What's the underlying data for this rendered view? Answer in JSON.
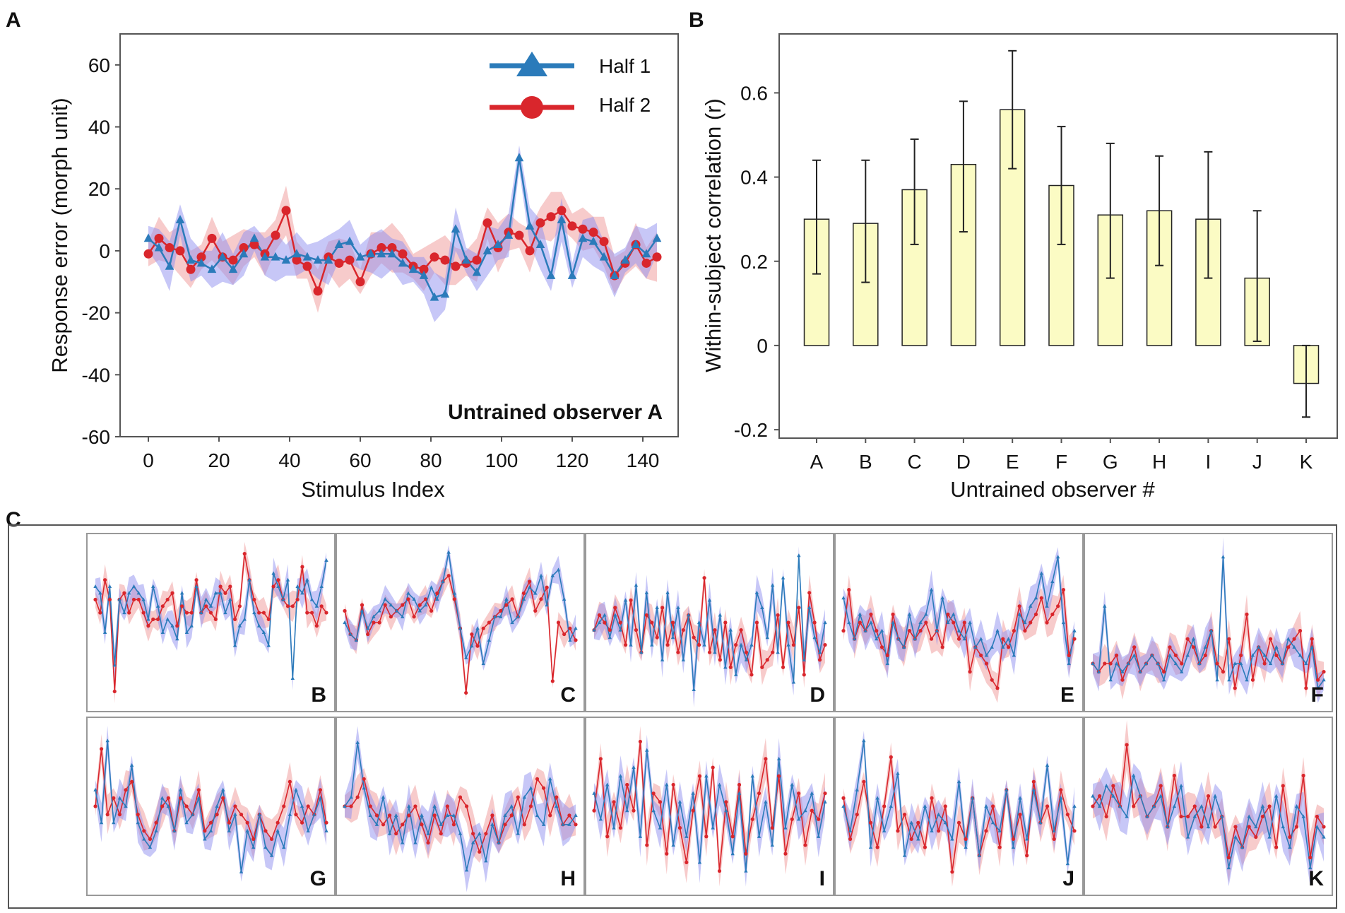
{
  "colors": {
    "half1": "#2b7bba",
    "half2": "#d9262c",
    "band1": "#8f8ff0",
    "band2": "#f0a0a0",
    "bar_fill": "#fbfbc4",
    "frame": "#555555"
  },
  "chart_data": [
    {
      "id": "A",
      "type": "line",
      "panel_letter": "A",
      "title": "",
      "annotation": "Untrained observer A",
      "xlabel": "Stimulus Index",
      "ylabel": "Response error (morph unit)",
      "xlim": [
        -8,
        150
      ],
      "ylim": [
        -60,
        70
      ],
      "xticks": [
        "0",
        "20",
        "40",
        "60",
        "80",
        "100",
        "120",
        "140"
      ],
      "yticks": [
        "60",
        "40",
        "20",
        "0",
        "-20",
        "-40",
        "-60"
      ],
      "legend": {
        "position": "top-right",
        "entries": [
          "Half 1",
          "Half 2"
        ]
      },
      "x": [
        0,
        3,
        6,
        9,
        12,
        15,
        18,
        21,
        24,
        27,
        30,
        33,
        36,
        39,
        42,
        45,
        48,
        51,
        54,
        57,
        60,
        63,
        66,
        69,
        72,
        75,
        78,
        81,
        84,
        87,
        90,
        93,
        96,
        99,
        102,
        105,
        108,
        111,
        114,
        117,
        120,
        123,
        126,
        129,
        132,
        135,
        138,
        141,
        144
      ],
      "series": [
        {
          "name": "Half 1",
          "marker": "triangle",
          "values": [
            4,
            1,
            -5,
            10,
            -3,
            -4,
            -6,
            -2,
            -6,
            -1,
            4,
            -2,
            -2,
            -3,
            -1,
            -2,
            -3,
            -3,
            2,
            3,
            -2,
            -1,
            -1,
            -1,
            -4,
            -6,
            -8,
            -15,
            -14,
            7,
            -3,
            -7,
            0,
            2,
            5,
            30,
            8,
            2,
            -8,
            10,
            -8,
            4,
            3,
            -2,
            -8,
            -3,
            2,
            -1,
            4
          ]
        },
        {
          "name": "Half 2",
          "marker": "circle",
          "values": [
            -1,
            4,
            1,
            0,
            -6,
            -2,
            4,
            -2,
            -3,
            1,
            2,
            -1,
            5,
            13,
            -3,
            -5,
            -13,
            -2,
            -4,
            -3,
            -10,
            -1,
            1,
            1,
            -1,
            -5,
            -6,
            -2,
            -3,
            -5,
            -4,
            -3,
            9,
            1,
            6,
            5,
            0,
            9,
            11,
            13,
            8,
            7,
            6,
            3,
            -8,
            -4,
            2,
            -4,
            -2
          ]
        }
      ]
    },
    {
      "id": "B",
      "type": "bar",
      "panel_letter": "B",
      "xlabel": "Untrained observer #",
      "ylabel": "Within-subject correlation (r)",
      "ylim": [
        -0.22,
        0.74
      ],
      "yticks": [
        "0.6",
        "0.4",
        "0.2",
        "0",
        "-0.2"
      ],
      "categories": [
        "A",
        "B",
        "C",
        "D",
        "E",
        "F",
        "G",
        "H",
        "I",
        "J",
        "K"
      ],
      "values": [
        0.3,
        0.29,
        0.37,
        0.43,
        0.56,
        0.38,
        0.31,
        0.32,
        0.3,
        0.16,
        -0.09
      ],
      "error_low": [
        0.17,
        0.15,
        0.24,
        0.27,
        0.42,
        0.24,
        0.16,
        0.19,
        0.16,
        0.01,
        -0.17
      ],
      "error_high": [
        0.44,
        0.44,
        0.49,
        0.58,
        0.7,
        0.52,
        0.48,
        0.45,
        0.46,
        0.32,
        0.0
      ]
    },
    {
      "id": "C",
      "type": "line",
      "panel_letter": "C",
      "subplots": [
        {
          "label": "B",
          "half1": [
            2,
            1,
            -5,
            2,
            -10,
            0,
            -2,
            1,
            2,
            1,
            0,
            -3,
            2,
            -1,
            -5,
            -3,
            -4,
            -6,
            1,
            -5,
            -4,
            2,
            -2,
            0,
            -1,
            1,
            1,
            -2,
            0,
            -7,
            -4,
            -3,
            3,
            -2,
            -4,
            -5,
            -7,
            4,
            2,
            0,
            3,
            -12,
            2,
            1,
            3,
            0,
            -1,
            2,
            6
          ],
          "half2": [
            0,
            -2,
            3,
            0,
            -14,
            0,
            1,
            -2,
            0,
            0,
            -2,
            -4,
            -3,
            -3,
            -1,
            0,
            1,
            -4,
            -1,
            -2,
            -2,
            3,
            -2,
            -1,
            -2,
            -3,
            2,
            1,
            2,
            -3,
            -1,
            7,
            3,
            0,
            -2,
            -2,
            -3,
            2,
            3,
            0,
            -1,
            -1,
            0,
            5,
            -2,
            -2,
            -4,
            -1,
            -2
          ]
        },
        {
          "label": "C",
          "half1": [
            -2,
            -4,
            -5,
            0,
            -3,
            -1,
            0,
            2,
            1,
            0,
            -1,
            3,
            2,
            0,
            1,
            4,
            2,
            5,
            10,
            3,
            -3,
            -8,
            -6,
            -3,
            -9,
            -5,
            -1,
            -1,
            2,
            -2,
            -1,
            2,
            4,
            3,
            6,
            1,
            6,
            7,
            2,
            -5,
            -3
          ],
          "half2": [
            0,
            -4,
            -5,
            1,
            -4,
            -2,
            -2,
            1,
            -1,
            0,
            1,
            2,
            -1,
            1,
            2,
            0,
            3,
            5,
            6,
            2,
            -3,
            -14,
            -4,
            -6,
            -3,
            -2,
            -1,
            0,
            1,
            2,
            -1,
            3,
            5,
            0,
            2,
            4,
            -12,
            -2,
            -4,
            -3,
            -5
          ]
        },
        {
          "label": "D",
          "half1": [
            0,
            1,
            2,
            -1,
            2,
            0,
            4,
            -2,
            6,
            -3,
            5,
            -2,
            3,
            -4,
            5,
            -1,
            3,
            -4,
            2,
            -8,
            1,
            -2,
            4,
            -3,
            2,
            -5,
            0,
            -6,
            -2,
            -4,
            -2,
            5,
            3,
            -1,
            6,
            -3,
            7,
            -2,
            -7,
            10,
            -4,
            3,
            -1,
            -3,
            1
          ],
          "half2": [
            0,
            2,
            1,
            0,
            3,
            1,
            -2,
            4,
            0,
            -3,
            2,
            1,
            -1,
            3,
            -2,
            1,
            -3,
            0,
            2,
            -1,
            -2,
            7,
            -3,
            0,
            -4,
            1,
            -5,
            -2,
            0,
            -3,
            -6,
            1,
            -5,
            -4,
            -3,
            2,
            -5,
            1,
            -2,
            3,
            -6,
            5,
            1,
            -4,
            -2
          ]
        },
        {
          "label": "E",
          "half1": [
            3,
            0,
            -2,
            1,
            -1,
            0,
            -2,
            -1,
            -5,
            0,
            -2,
            -3,
            1,
            -2,
            0,
            1,
            4,
            -1,
            3,
            0,
            1,
            -1,
            -2,
            0,
            -3,
            -2,
            -4,
            -3,
            -1,
            -3,
            -2,
            -4,
            1,
            0,
            2,
            3,
            6,
            2,
            5,
            8,
            0,
            -5,
            -1
          ],
          "half2": [
            -1,
            4,
            -2,
            0,
            -1,
            1,
            -1,
            -3,
            -4,
            1,
            -2,
            -3,
            -1,
            -2,
            -1,
            0,
            -2,
            -1,
            -3,
            1,
            0,
            -2,
            0,
            -6,
            -3,
            -4,
            -5,
            -7,
            -8,
            -2,
            -3,
            -1,
            2,
            -1,
            0,
            1,
            3,
            0,
            1,
            2,
            4,
            -4,
            -2
          ]
        },
        {
          "label": "F",
          "half1": [
            -1,
            -2,
            6,
            -3,
            -1,
            -2,
            -1,
            0,
            -2,
            -1,
            0,
            -1,
            -3,
            0,
            -1,
            -2,
            0,
            2,
            -1,
            1,
            3,
            -3,
            12,
            -3,
            -1,
            -1,
            -3,
            0,
            1,
            0,
            -1,
            1,
            -1,
            2,
            1,
            0,
            -1,
            1,
            -4,
            -3
          ],
          "half2": [
            -1,
            -2,
            -1,
            -1,
            0,
            -3,
            -1,
            1,
            -2,
            -1,
            0,
            -1,
            -2,
            1,
            0,
            -1,
            2,
            1,
            -1,
            0,
            3,
            -1,
            -2,
            2,
            -4,
            0,
            5,
            -3,
            1,
            -1,
            2,
            0,
            -1,
            1,
            2,
            3,
            -4,
            2,
            -3,
            -2
          ]
        },
        {
          "label": "G",
          "half1": [
            2,
            -2,
            8,
            -2,
            1,
            0,
            5,
            -2,
            -4,
            -5,
            -3,
            1,
            0,
            -3,
            2,
            -2,
            -1,
            1,
            -4,
            -3,
            0,
            2,
            -3,
            -1,
            -8,
            -3,
            -5,
            -1,
            -5,
            -6,
            -3,
            -5,
            -1,
            2,
            0,
            -3,
            -1,
            1,
            -3
          ],
          "half2": [
            0,
            7,
            -1,
            1,
            -1,
            2,
            3,
            -1,
            -3,
            -4,
            -2,
            0,
            1,
            -3,
            1,
            0,
            -1,
            2,
            -3,
            -2,
            -1,
            1,
            -2,
            0,
            -1,
            -2,
            -4,
            -1,
            -3,
            -4,
            -2,
            0,
            3,
            -1,
            -2,
            0,
            -1,
            2,
            -2
          ]
        },
        {
          "label": "H",
          "half1": [
            0,
            1,
            7,
            2,
            -1,
            -2,
            1,
            -3,
            -1,
            -4,
            0,
            -4,
            -1,
            -3,
            0,
            -2,
            -1,
            -1,
            -3,
            -7,
            -4,
            -3,
            -6,
            -2,
            -4,
            -1,
            0,
            -3,
            1,
            2,
            -1,
            -2,
            3,
            0,
            -2,
            -2,
            -1
          ],
          "half2": [
            0,
            0,
            1,
            3,
            0,
            -1,
            -2,
            -1,
            -3,
            -2,
            -1,
            0,
            -2,
            -4,
            -1,
            -3,
            0,
            -2,
            1,
            0,
            -3,
            -5,
            -3,
            -1,
            -4,
            -2,
            -1,
            1,
            -2,
            0,
            3,
            2,
            -1,
            1,
            -2,
            -1,
            -2
          ]
        },
        {
          "label": "I",
          "half1": [
            2,
            -1,
            3,
            -2,
            4,
            0,
            5,
            -3,
            7,
            0,
            -2,
            3,
            -4,
            1,
            -3,
            2,
            -6,
            4,
            -2,
            3,
            0,
            -5,
            2,
            -7,
            4,
            -3,
            1,
            -4,
            6,
            -2,
            3,
            -1,
            0,
            2,
            -3,
            1
          ],
          "half2": [
            0,
            6,
            -3,
            1,
            -2,
            3,
            0,
            8,
            -4,
            2,
            1,
            -5,
            3,
            -2,
            -6,
            0,
            4,
            -3,
            5,
            -7,
            1,
            -3,
            3,
            -5,
            -1,
            2,
            6,
            -2,
            4,
            -5,
            -1,
            2,
            -4,
            0,
            -1,
            2
          ]
        },
        {
          "label": "J",
          "half1": [
            0,
            -3,
            2,
            8,
            -5,
            1,
            -3,
            0,
            4,
            -6,
            -2,
            -4,
            0,
            -3,
            -1,
            -2,
            -4,
            3,
            -5,
            1,
            -6,
            0,
            -2,
            -3,
            2,
            -5,
            1,
            -4,
            2,
            -2,
            5,
            -3,
            1,
            -7,
            0
          ],
          "half2": [
            1,
            -4,
            -1,
            3,
            -2,
            -5,
            0,
            6,
            -3,
            -1,
            -4,
            -2,
            -5,
            1,
            -3,
            0,
            -8,
            -2,
            -4,
            1,
            -6,
            -3,
            0,
            -5,
            2,
            -4,
            -1,
            -6,
            3,
            -2,
            0,
            -4,
            2,
            -1,
            -3
          ]
        },
        {
          "label": "K",
          "half1": [
            1,
            0,
            2,
            1,
            0,
            -1,
            3,
            1,
            -1,
            0,
            1,
            -2,
            0,
            2,
            -3,
            -1,
            0,
            -2,
            1,
            -1,
            -6,
            -3,
            -4,
            -1,
            -2,
            0,
            -3,
            1,
            -2,
            -4,
            0,
            -1,
            -6,
            -2,
            -3
          ],
          "half2": [
            0,
            1,
            -1,
            2,
            0,
            6,
            0,
            1,
            -1,
            0,
            2,
            -2,
            3,
            -1,
            -1,
            0,
            -2,
            1,
            -2,
            -1,
            -5,
            -2,
            -4,
            -2,
            -3,
            -1,
            0,
            -4,
            2,
            -3,
            -2,
            3,
            -5,
            -1,
            -2
          ]
        }
      ]
    }
  ]
}
